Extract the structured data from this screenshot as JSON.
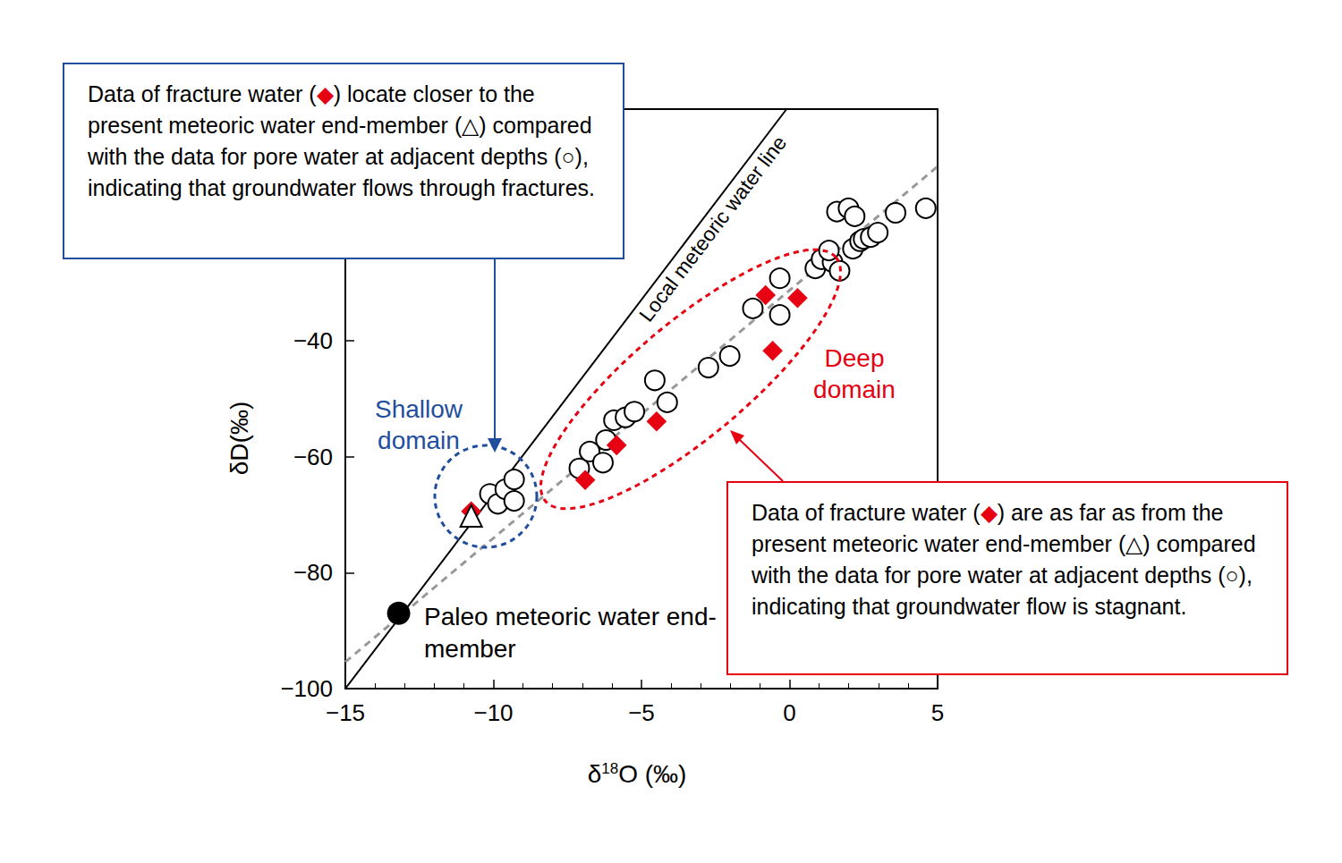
{
  "chart_data": {
    "type": "scatter",
    "xlabel": "δ18O (‰)",
    "ylabel": "δD(‰)",
    "xlim": [
      -15,
      5
    ],
    "ylim": [
      -100,
      0
    ],
    "xticks": [
      {
        "value": -15,
        "label": "−15"
      },
      {
        "value": -10,
        "label": "−10"
      },
      {
        "value": -5,
        "label": "−5"
      },
      0,
      5
    ],
    "yticks": [
      {
        "value": -100,
        "label": "−100"
      },
      {
        "value": -80,
        "label": "−80"
      },
      {
        "value": -60,
        "label": "−60"
      },
      {
        "value": -40,
        "label": "−40"
      }
    ],
    "grid": false,
    "series": [
      {
        "name": "Local meteoric water line",
        "type": "line",
        "line_style": "solid",
        "color": "#000000",
        "x": [
          -15,
          -0.1
        ],
        "y": [
          -100,
          0
        ]
      },
      {
        "type": "line",
        "line_style": "dashed",
        "color": "#999999",
        "x": [
          -15,
          5
        ],
        "y": [
          -95.4,
          -9.9
        ]
      },
      {
        "name": "pore water",
        "type": "scatter",
        "marker": "open_circle",
        "color": "#000000",
        "x": [
          -10.12,
          -9.85,
          -9.6,
          -9.3,
          -9.3,
          -7.1,
          -6.75,
          -6.3,
          -6.2,
          -5.93,
          -5.54,
          -5.24,
          -4.55,
          -4.13,
          -2.74,
          -2.02,
          -1.24,
          -0.33,
          -0.33,
          0.87,
          1.08,
          1.45,
          1.69,
          1.33,
          1.6,
          1.99,
          2.2,
          2.14,
          2.38,
          2.5,
          2.74,
          2.98,
          3.58,
          4.6
        ],
        "y": [
          -66.4,
          -68.1,
          -65.6,
          -63.9,
          -67.6,
          -62.0,
          -59.1,
          -61.0,
          -57.1,
          -53.7,
          -53.2,
          -52.2,
          -46.8,
          -50.6,
          -44.6,
          -42.6,
          -34.4,
          -35.5,
          -29.2,
          -27.5,
          -25.9,
          -26.4,
          -27.9,
          -24.4,
          -17.7,
          -17.1,
          -18.5,
          -24.1,
          -22.8,
          -22.4,
          -22.1,
          -21.3,
          -17.9,
          -17.1
        ]
      },
      {
        "name": "fracture water",
        "type": "scatter",
        "marker": "diamond",
        "color": "#e60012",
        "x": [
          -10.75,
          -6.9,
          -5.84,
          -4.49,
          -0.81,
          0.27,
          -0.57
        ],
        "y": [
          -69.4,
          -64.0,
          -58.0,
          -53.9,
          -32.1,
          -32.6,
          -41.7
        ]
      },
      {
        "name": "present meteoric water end-member",
        "type": "scatter",
        "marker": "open_triangle",
        "color": "#000000",
        "x": [
          -10.75
        ],
        "y": [
          -70.2
        ]
      },
      {
        "name": "Paleo meteoric water end-member",
        "type": "scatter",
        "marker": "circle",
        "color": "#000000",
        "x": [
          -13.2
        ],
        "y": [
          -87.0
        ]
      }
    ],
    "domains": [
      {
        "label": "Shallow domain",
        "color": "#1f4e9c"
      },
      {
        "label": "Deep domain",
        "color": "#e60012"
      }
    ],
    "annotations": [
      {
        "color": "#1f4e9c",
        "parts": [
          "Data of fracture water (",
          {
            "text": "◆",
            "color": "#e60012"
          },
          ") locate closer to the present meteoric water end-member (△) compared with the data for pore water at adjacent depths (○), indicating that groundwater flows through fractures."
        ]
      },
      {
        "color": "#e60012",
        "parts": [
          "Data of fracture water (",
          {
            "text": "◆",
            "color": "#e60012"
          },
          ") are as far as from the present meteoric water end-member (△) compared with the data for pore water at adjacent depths (○), indicating that groundwater flow is stagnant."
        ]
      }
    ]
  }
}
